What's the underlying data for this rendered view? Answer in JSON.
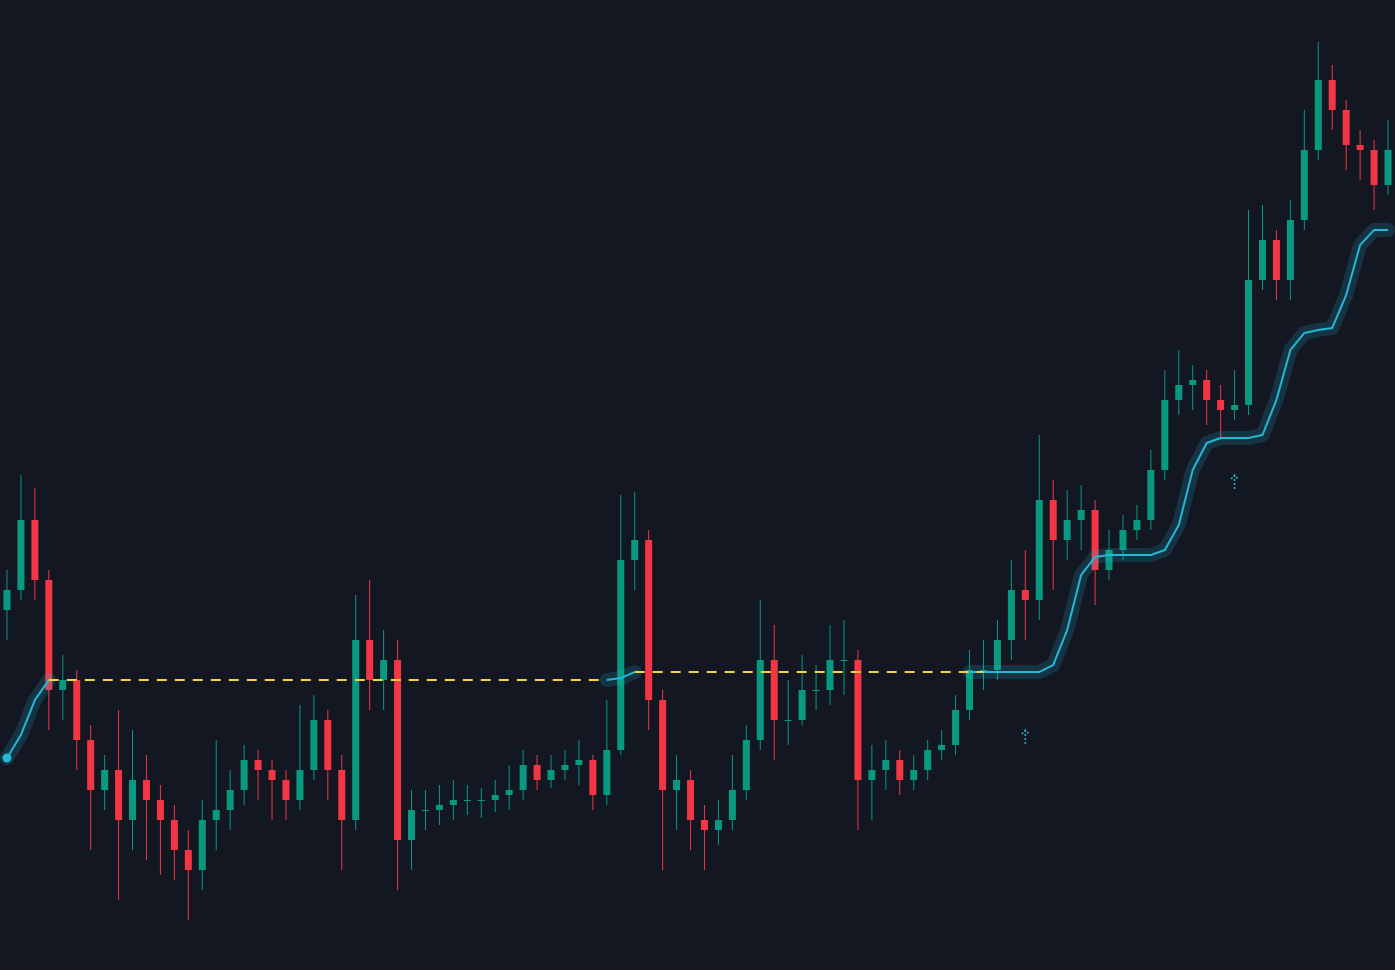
{
  "chart_data": {
    "type": "candlestick",
    "background": "#131722",
    "up_color": "#089981",
    "down_color": "#f23645",
    "ylim": [
      0,
      970
    ],
    "open": [
      360,
      380,
      450,
      390,
      280,
      290,
      230,
      180,
      200,
      150,
      190,
      170,
      150,
      120,
      100,
      150,
      160,
      180,
      210,
      200,
      190,
      170,
      200,
      250,
      200,
      150,
      330,
      290,
      310,
      130,
      160,
      160,
      165,
      170,
      170,
      170,
      175,
      180,
      205,
      190,
      200,
      205,
      210,
      175,
      220,
      410,
      430,
      270,
      180,
      190,
      150,
      140,
      150,
      180,
      230,
      310,
      250,
      250,
      280,
      280,
      310,
      310,
      190,
      200,
      210,
      190,
      200,
      220,
      225,
      260,
      300,
      300,
      330,
      380,
      370,
      470,
      430,
      450,
      460,
      400,
      420,
      440,
      450,
      500,
      570,
      585,
      590,
      570,
      560,
      565,
      690,
      730,
      690,
      750,
      820,
      890,
      860,
      825,
      820,
      785
    ],
    "high": [
      400,
      495,
      482,
      400,
      315,
      300,
      245,
      215,
      260,
      240,
      215,
      185,
      165,
      140,
      170,
      230,
      200,
      225,
      220,
      210,
      200,
      265,
      275,
      260,
      215,
      375,
      390,
      340,
      330,
      180,
      180,
      185,
      190,
      185,
      182,
      190,
      205,
      220,
      215,
      215,
      220,
      230,
      215,
      270,
      475,
      478,
      440,
      280,
      215,
      200,
      165,
      170,
      215,
      245,
      370,
      345,
      290,
      315,
      305,
      345,
      350,
      320,
      225,
      230,
      220,
      215,
      230,
      240,
      275,
      320,
      330,
      350,
      410,
      420,
      535,
      490,
      480,
      485,
      470,
      440,
      455,
      465,
      520,
      600,
      620,
      605,
      600,
      585,
      600,
      760,
      765,
      740,
      770,
      860,
      928,
      905,
      870,
      840,
      830,
      850
    ],
    "low": [
      330,
      370,
      370,
      240,
      250,
      200,
      120,
      160,
      70,
      120,
      110,
      95,
      90,
      50,
      80,
      120,
      140,
      165,
      170,
      150,
      150,
      160,
      190,
      170,
      100,
      140,
      260,
      260,
      80,
      100,
      140,
      145,
      150,
      155,
      152,
      158,
      160,
      170,
      180,
      182,
      190,
      185,
      160,
      165,
      215,
      380,
      240,
      100,
      140,
      120,
      100,
      125,
      140,
      170,
      220,
      210,
      225,
      245,
      260,
      265,
      275,
      140,
      150,
      180,
      175,
      180,
      190,
      210,
      215,
      250,
      280,
      290,
      310,
      330,
      350,
      380,
      410,
      420,
      365,
      390,
      410,
      430,
      440,
      490,
      555,
      560,
      545,
      530,
      550,
      555,
      680,
      670,
      670,
      740,
      810,
      840,
      800,
      790,
      760,
      775
    ],
    "close": [
      380,
      450,
      390,
      280,
      290,
      230,
      180,
      200,
      150,
      190,
      170,
      150,
      120,
      100,
      150,
      160,
      180,
      210,
      200,
      190,
      170,
      200,
      250,
      200,
      150,
      330,
      290,
      310,
      130,
      160,
      160,
      165,
      170,
      170,
      170,
      175,
      180,
      205,
      190,
      200,
      205,
      210,
      175,
      220,
      410,
      430,
      270,
      180,
      190,
      150,
      140,
      150,
      180,
      230,
      310,
      250,
      250,
      280,
      280,
      310,
      310,
      190,
      200,
      210,
      190,
      200,
      220,
      225,
      260,
      300,
      300,
      330,
      380,
      370,
      470,
      430,
      450,
      460,
      400,
      420,
      440,
      450,
      500,
      570,
      585,
      590,
      570,
      560,
      565,
      690,
      730,
      690,
      750,
      820,
      890,
      860,
      825,
      820,
      785,
      820
    ],
    "series": [
      {
        "color": "#22b8d6",
        "style": "solid",
        "glow": true,
        "start_dot": true,
        "values": [
          212,
          235,
          270,
          290,
          null,
          null,
          null,
          null,
          null,
          null,
          null,
          null,
          null,
          null,
          null,
          null,
          null,
          null,
          null,
          null,
          null,
          null,
          null,
          null,
          null,
          null,
          null,
          null,
          null,
          null,
          null,
          null,
          null,
          null,
          null,
          null,
          null,
          null,
          null,
          null,
          null,
          null,
          null,
          290,
          292,
          298,
          null,
          null,
          null,
          null,
          null,
          null,
          null,
          null,
          null,
          null,
          null,
          null,
          null,
          null,
          null,
          null,
          null,
          null,
          null,
          null,
          null,
          null,
          null,
          298,
          298,
          298,
          298,
          298,
          298,
          305,
          340,
          395,
          413,
          415,
          415,
          415,
          415,
          420,
          445,
          500,
          527,
          532,
          532,
          532,
          535,
          570,
          620,
          637,
          640,
          642,
          675,
          725,
          740,
          740
        ]
      },
      {
        "color": "#f5d33b",
        "style": "dashed",
        "glow": false,
        "start_dot": false,
        "values": [
          null,
          null,
          null,
          290,
          290,
          290,
          290,
          290,
          290,
          290,
          290,
          290,
          290,
          290,
          290,
          290,
          290,
          290,
          290,
          290,
          290,
          290,
          290,
          290,
          290,
          290,
          290,
          290,
          290,
          290,
          290,
          290,
          290,
          290,
          290,
          290,
          290,
          290,
          290,
          290,
          290,
          290,
          290,
          290,
          null,
          298,
          298,
          298,
          298,
          298,
          298,
          298,
          298,
          298,
          298,
          298,
          298,
          298,
          298,
          298,
          298,
          298,
          298,
          298,
          298,
          298,
          298,
          298,
          298,
          298,
          298,
          null,
          null,
          null,
          null,
          null,
          null,
          null,
          null,
          null,
          null,
          null,
          null,
          null,
          null,
          null,
          null,
          null,
          null,
          null,
          null,
          null,
          null,
          null,
          null,
          null,
          null,
          null,
          null,
          null
        ]
      }
    ],
    "signals": {
      "color": "#22b8d6",
      "values": [
        null,
        null,
        null,
        null,
        null,
        null,
        null,
        null,
        null,
        null,
        null,
        null,
        null,
        null,
        null,
        null,
        null,
        null,
        null,
        null,
        null,
        null,
        null,
        null,
        null,
        null,
        null,
        null,
        null,
        null,
        null,
        null,
        null,
        null,
        null,
        null,
        null,
        null,
        null,
        null,
        null,
        null,
        null,
        null,
        null,
        null,
        null,
        null,
        null,
        null,
        null,
        null,
        null,
        null,
        null,
        null,
        null,
        null,
        null,
        null,
        null,
        null,
        null,
        null,
        null,
        null,
        null,
        null,
        null,
        null,
        null,
        null,
        null,
        233,
        null,
        null,
        null,
        null,
        null,
        null,
        null,
        null,
        null,
        null,
        null,
        null,
        null,
        null,
        488,
        null,
        null,
        null,
        null,
        null,
        null,
        null,
        null,
        null,
        null,
        null
      ]
    }
  }
}
